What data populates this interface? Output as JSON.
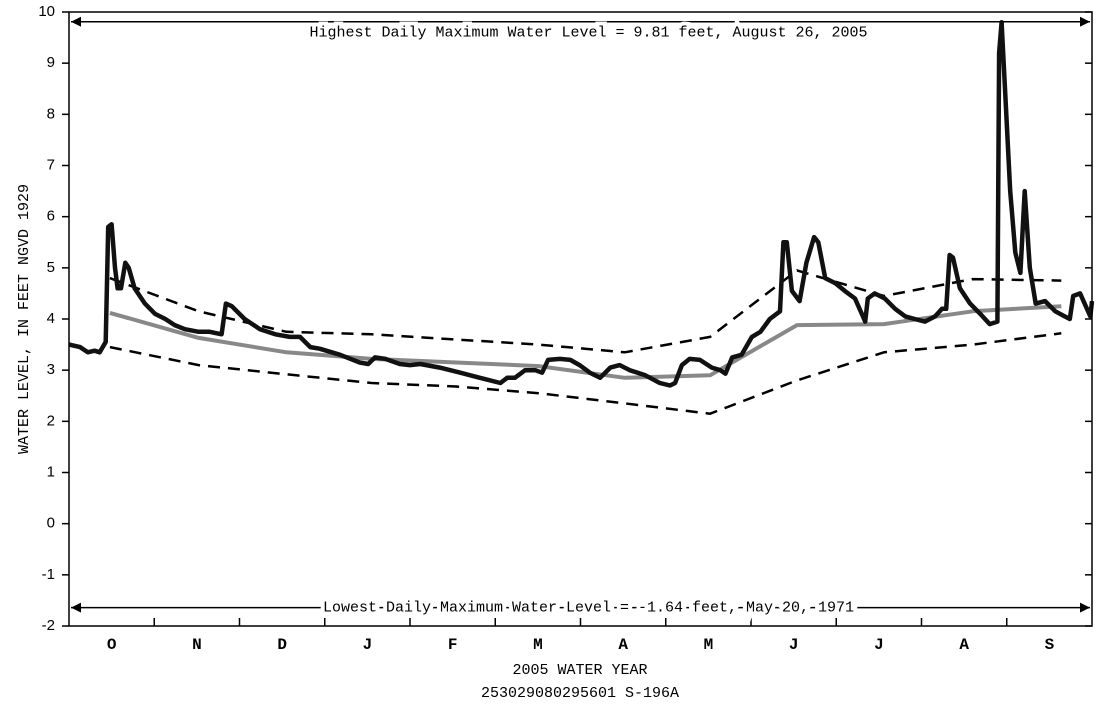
{
  "chart_data": {
    "type": "line",
    "ylabel": "WATER LEVEL, IN FEET NGVD 1929",
    "xlabel": "2005 WATER YEAR",
    "subtitle": "253029080295601   S-196A",
    "categories": [
      "O",
      "N",
      "D",
      "J",
      "F",
      "M",
      "A",
      "M",
      "J",
      "J",
      "A",
      "S"
    ],
    "xlim": [
      0,
      12
    ],
    "ylim": [
      -2,
      10
    ],
    "yticks": [
      -2,
      -1,
      0,
      1,
      2,
      3,
      4,
      5,
      6,
      7,
      8,
      9,
      10
    ],
    "annotations": [
      {
        "text": "Highest Daily Maximum Water Level = 9.81 feet, August 26, 2005",
        "value": 9.81
      },
      {
        "text": "Lowest Daily Maximum Water Level = -1.64 feet, May 20, 1971",
        "value": -1.64
      }
    ],
    "series": [
      {
        "color": "#888888",
        "linestyle": "solid",
        "x": [
          0.48,
          1.52,
          2.55,
          3.55,
          4.54,
          5.51,
          6.52,
          7.52,
          8.54,
          9.56,
          10.6,
          11.64
        ],
        "values": [
          4.12,
          3.63,
          3.35,
          3.22,
          3.15,
          3.08,
          2.85,
          2.9,
          3.88,
          3.9,
          4.15,
          4.25
        ]
      },
      {
        "color": "#000000",
        "linestyle": "dashed",
        "x": [
          0.48,
          1.52,
          2.55,
          3.55,
          4.54,
          5.51,
          6.52,
          7.52,
          8.54,
          9.56,
          10.6,
          11.64
        ],
        "values": [
          4.8,
          4.15,
          3.75,
          3.7,
          3.6,
          3.5,
          3.35,
          3.65,
          4.95,
          4.45,
          4.78,
          4.75
        ]
      },
      {
        "color": "#000000",
        "linestyle": "dashed",
        "x": [
          0.48,
          1.52,
          2.55,
          3.55,
          4.54,
          5.51,
          6.52,
          7.52,
          8.54,
          9.56,
          10.6,
          11.64
        ],
        "values": [
          3.45,
          3.1,
          2.92,
          2.75,
          2.68,
          2.55,
          2.35,
          2.15,
          2.8,
          3.35,
          3.5,
          3.72
        ]
      },
      {
        "color": "#111111",
        "linestyle": "solid",
        "x": [
          0,
          0.13,
          0.22,
          0.3,
          0.36,
          0.43,
          0.46,
          0.5,
          0.54,
          0.57,
          0.61,
          0.66,
          0.7,
          0.77,
          0.89,
          1.01,
          1.13,
          1.24,
          1.36,
          1.52,
          1.65,
          1.79,
          1.84,
          1.91,
          2.06,
          2.24,
          2.42,
          2.59,
          2.71,
          2.83,
          2.94,
          3.18,
          3.41,
          3.51,
          3.59,
          3.71,
          3.88,
          4.0,
          4.12,
          4.35,
          4.59,
          4.82,
          5.06,
          5.14,
          5.23,
          5.35,
          5.47,
          5.55,
          5.62,
          5.76,
          5.88,
          5.99,
          6.11,
          6.23,
          6.35,
          6.46,
          6.58,
          6.76,
          6.93,
          7.05,
          7.11,
          7.19,
          7.28,
          7.4,
          7.54,
          7.64,
          7.7,
          7.78,
          7.89,
          8.01,
          8.11,
          8.22,
          8.34,
          8.38,
          8.42,
          8.48,
          8.57,
          8.65,
          8.74,
          8.79,
          8.87,
          8.99,
          9.1,
          9.22,
          9.3,
          9.34,
          9.37,
          9.45,
          9.57,
          9.69,
          9.81,
          9.92,
          10.04,
          10.16,
          10.24,
          10.29,
          10.33,
          10.37,
          10.45,
          10.57,
          10.69,
          10.8,
          10.89,
          10.91,
          10.94,
          10.98,
          11.04,
          11.1,
          11.16,
          11.21,
          11.27,
          11.34,
          11.45,
          11.57,
          11.68,
          11.74,
          11.78,
          11.86,
          11.98,
          12.0
        ],
        "values": [
          3.5,
          3.45,
          3.35,
          3.38,
          3.35,
          3.55,
          5.8,
          5.85,
          5.0,
          4.6,
          4.6,
          5.1,
          5.0,
          4.6,
          4.3,
          4.1,
          4.0,
          3.88,
          3.8,
          3.75,
          3.75,
          3.7,
          4.3,
          4.25,
          4.0,
          3.8,
          3.7,
          3.65,
          3.65,
          3.45,
          3.42,
          3.3,
          3.15,
          3.12,
          3.25,
          3.22,
          3.12,
          3.1,
          3.12,
          3.05,
          2.95,
          2.85,
          2.75,
          2.85,
          2.85,
          3.0,
          3.0,
          2.95,
          3.2,
          3.22,
          3.2,
          3.1,
          2.95,
          2.85,
          3.05,
          3.1,
          3.0,
          2.9,
          2.75,
          2.7,
          2.75,
          3.1,
          3.22,
          3.2,
          3.05,
          3.0,
          2.93,
          3.25,
          3.3,
          3.65,
          3.75,
          4.0,
          4.15,
          5.5,
          5.5,
          4.55,
          4.35,
          5.1,
          5.6,
          5.5,
          4.8,
          4.7,
          4.55,
          4.4,
          4.1,
          3.95,
          4.4,
          4.5,
          4.4,
          4.2,
          4.05,
          4.0,
          3.95,
          4.05,
          4.2,
          4.2,
          5.25,
          5.2,
          4.6,
          4.3,
          4.1,
          3.9,
          3.95,
          9.2,
          9.8,
          8.5,
          6.5,
          5.3,
          4.9,
          6.5,
          5.0,
          4.3,
          4.35,
          4.15,
          4.05,
          4.0,
          4.45,
          4.5,
          4.05,
          4.35
        ]
      }
    ]
  }
}
